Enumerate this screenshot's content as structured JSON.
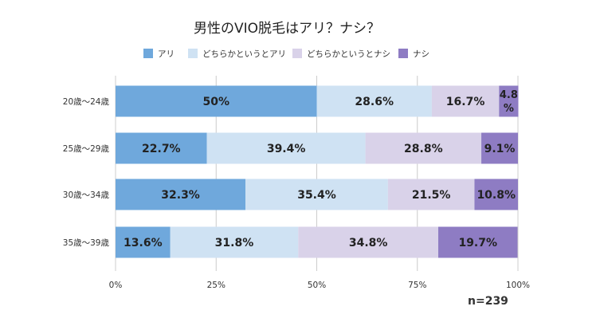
{
  "chart_data": {
    "type": "bar",
    "orientation": "horizontal",
    "stacked": true,
    "title": "男性のVIO脱毛はアリ？ナシ？",
    "categories": [
      "20歳〜24歳",
      "25歳〜29歳",
      "30歳〜34歳",
      "35歳〜39歳"
    ],
    "series": [
      {
        "name": "アリ",
        "color": "#6fa8dc",
        "values": [
          50,
          22.7,
          32.3,
          13.6
        ],
        "labels": [
          "50%",
          "22.7%",
          "32.3%",
          "13.6%"
        ]
      },
      {
        "name": "どちらかというとアリ",
        "color": "#cfe2f3",
        "values": [
          28.6,
          39.4,
          35.4,
          31.8
        ],
        "labels": [
          "28.6%",
          "39.4%",
          "35.4%",
          "31.8%"
        ]
      },
      {
        "name": "どちらかというとナシ",
        "color": "#d9d2e9",
        "values": [
          16.7,
          28.8,
          21.5,
          34.8
        ],
        "labels": [
          "16.7%",
          "28.8%",
          "21.5%",
          "34.8%"
        ]
      },
      {
        "name": "ナシ",
        "color": "#8e7cc3",
        "values": [
          4.8,
          9.1,
          10.8,
          19.7
        ],
        "labels": [
          "4.8%",
          "9.1%",
          "10.8%",
          "19.7%"
        ]
      }
    ],
    "xlim": [
      0,
      100
    ],
    "xticks": [
      "0%",
      "25%",
      "50%",
      "75%",
      "100%"
    ],
    "grid": true,
    "legend_position": "top",
    "annotation": "n=239"
  }
}
